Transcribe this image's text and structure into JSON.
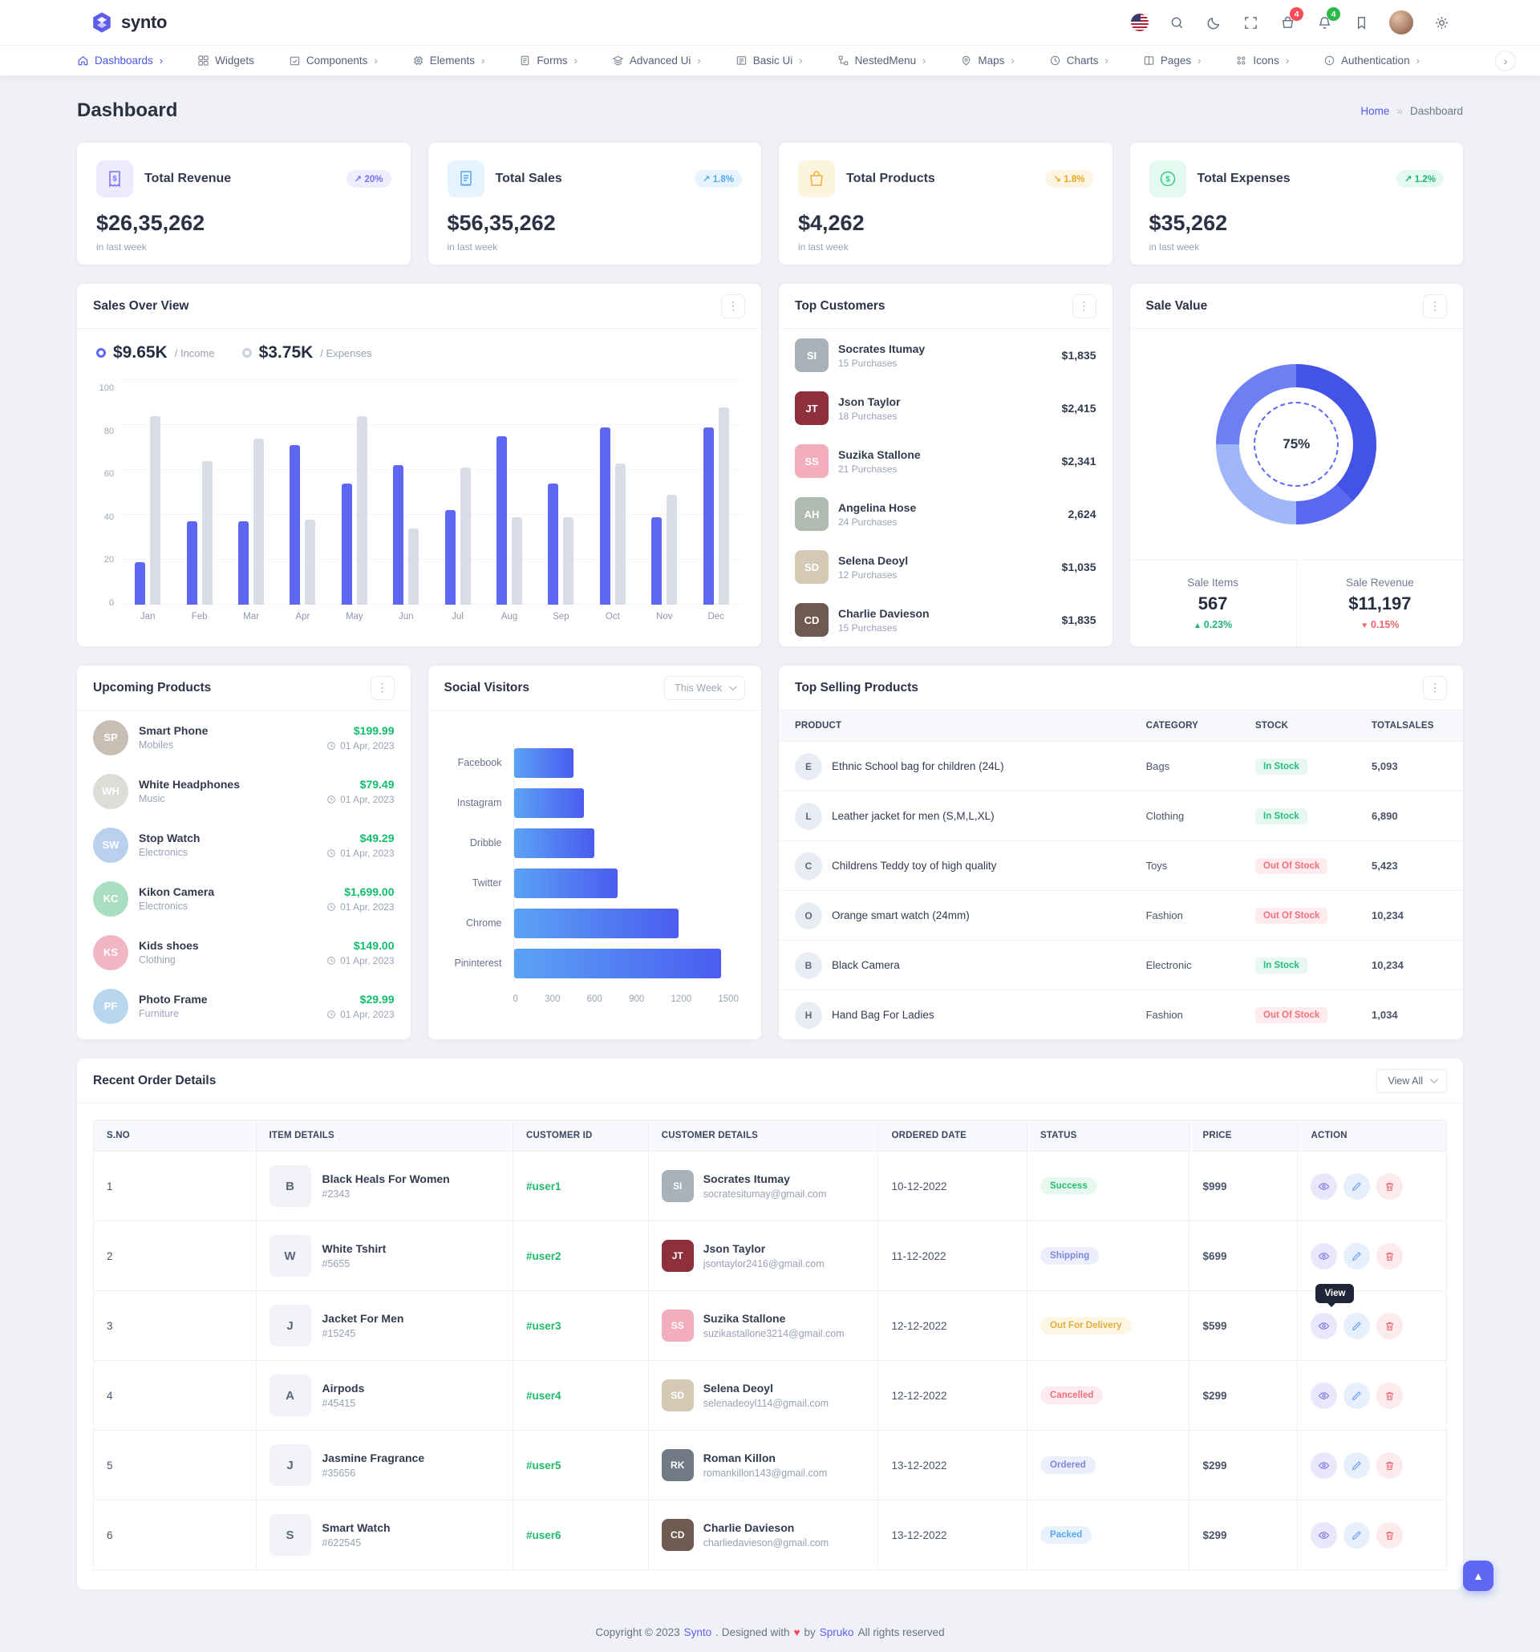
{
  "app": {
    "logo_text": "synto"
  },
  "header": {
    "cart_badge": "4",
    "bell_badge": "4"
  },
  "nav": {
    "items": [
      {
        "label": "Dashboards",
        "icon": "home",
        "chevron": "›",
        "active": true
      },
      {
        "label": "Widgets",
        "icon": "widgets"
      },
      {
        "label": "Components",
        "icon": "components",
        "chevron": "›"
      },
      {
        "label": "Elements",
        "icon": "elements",
        "chevron": "›"
      },
      {
        "label": "Forms",
        "icon": "forms",
        "chevron": "›"
      },
      {
        "label": "Advanced Ui",
        "icon": "advanced-ui",
        "chevron": "›"
      },
      {
        "label": "Basic Ui",
        "icon": "basic-ui",
        "chevron": "›"
      },
      {
        "label": "NestedMenu",
        "icon": "nested-menu",
        "chevron": "›"
      },
      {
        "label": "Maps",
        "icon": "maps",
        "chevron": "›"
      },
      {
        "label": "Charts",
        "icon": "charts",
        "chevron": "›"
      },
      {
        "label": "Pages",
        "icon": "pages",
        "chevron": "›"
      },
      {
        "label": "Icons",
        "icon": "icons",
        "chevron": "›"
      },
      {
        "label": "Authentication",
        "icon": "authentication",
        "chevron": "›"
      }
    ]
  },
  "page": {
    "title": "Dashboard"
  },
  "breadcrumb": {
    "home": "Home",
    "sep": "»",
    "current": "Dashboard"
  },
  "stats": [
    {
      "title": "Total Revenue",
      "value": "$26,35,262",
      "caption": "in last week",
      "delta": "20%",
      "trend": "up",
      "theme": "purple",
      "icon": "receipt"
    },
    {
      "title": "Total Sales",
      "value": "$56,35,262",
      "caption": "in last week",
      "delta": "1.8%",
      "trend": "up",
      "theme": "blue",
      "icon": "invoice"
    },
    {
      "title": "Total Products",
      "value": "$4,262",
      "caption": "in last week",
      "delta": "1.8%",
      "trend": "down",
      "theme": "orange",
      "icon": "bag"
    },
    {
      "title": "Total Expenses",
      "value": "$35,262",
      "caption": "in last week",
      "delta": "1.2%",
      "trend": "up",
      "theme": "green",
      "icon": "dollar"
    }
  ],
  "sales_overview": {
    "title": "Sales Over View",
    "legend": [
      {
        "value": "$9.65K",
        "label": "/ Income",
        "type": "income"
      },
      {
        "value": "$3.75K",
        "label": "/ Expenses",
        "type": "expense"
      }
    ]
  },
  "top_customers": {
    "title": "Top Customers",
    "items": [
      {
        "name": "Socrates Itumay",
        "purchases": "15 Purchases",
        "amount": "$1,835",
        "tint": "#a9b2ba"
      },
      {
        "name": "Json Taylor",
        "purchases": "18 Purchases",
        "amount": "$2,415",
        "tint": "#8e2f3c"
      },
      {
        "name": "Suzika Stallone",
        "purchases": "21 Purchases",
        "amount": "$2,341",
        "tint": "#f2aebc"
      },
      {
        "name": "Angelina Hose",
        "purchases": "24 Purchases",
        "amount": "2,624",
        "tint": "#b0bab0"
      },
      {
        "name": "Selena Deoyl",
        "purchases": "12 Purchases",
        "amount": "$1,035",
        "tint": "#d4c9b5"
      },
      {
        "name": "Charlie Davieson",
        "purchases": "15 Purchases",
        "amount": "$1,835",
        "tint": "#6e5a50"
      }
    ]
  },
  "sale_value": {
    "title": "Sale Value",
    "percent": "75%",
    "items": [
      {
        "label": "Sale Items",
        "value": "567",
        "delta": "0.23%",
        "dir": "up"
      },
      {
        "label": "Sale Revenue",
        "value": "$11,197",
        "delta": "0.15%",
        "dir": "down"
      }
    ]
  },
  "upcoming_products": {
    "title": "Upcoming Products",
    "items": [
      {
        "name": "Smart Phone",
        "category": "Mobiles",
        "price": "$199.99",
        "date": "01 Apr, 2023",
        "tint": "#c9beb4"
      },
      {
        "name": "White Headphones",
        "category": "Music",
        "price": "$79.49",
        "date": "01 Apr, 2023",
        "tint": "#dcdcd8"
      },
      {
        "name": "Stop Watch",
        "category": "Electronics",
        "price": "$49.29",
        "date": "01 Apr, 2023",
        "tint": "#b9d1ef"
      },
      {
        "name": "Kikon Camera",
        "category": "Electronics",
        "price": "$1,699.00",
        "date": "01 Apr, 2023",
        "tint": "#a9dfc0"
      },
      {
        "name": "Kids shoes",
        "category": "Clothing",
        "price": "$149.00",
        "date": "01 Apr, 2023",
        "tint": "#f0b6c6"
      },
      {
        "name": "Photo Frame",
        "category": "Furniture",
        "price": "$29.99",
        "date": "01 Apr, 2023",
        "tint": "#b8d7ef"
      }
    ]
  },
  "social_visitors": {
    "title": "Social Visitors",
    "range": "This Week"
  },
  "top_selling": {
    "title": "Top Selling Products",
    "columns": [
      "PRODUCT",
      "CATEGORY",
      "STOCK",
      "TOTALSALES"
    ],
    "rows": [
      {
        "product": "Ethnic School bag for children (24L)",
        "category": "Bags",
        "stock": "In Stock",
        "stock_type": "in",
        "total": "5,093"
      },
      {
        "product": "Leather jacket for men (S,M,L,XL)",
        "category": "Clothing",
        "stock": "In Stock",
        "stock_type": "in",
        "total": "6,890"
      },
      {
        "product": "Childrens Teddy toy of high quality",
        "category": "Toys",
        "stock": "Out Of Stock",
        "stock_type": "out",
        "total": "5,423"
      },
      {
        "product": "Orange smart watch (24mm)",
        "category": "Fashion",
        "stock": "Out Of Stock",
        "stock_type": "out",
        "total": "10,234"
      },
      {
        "product": "Black Camera",
        "category": "Electronic",
        "stock": "In Stock",
        "stock_type": "in",
        "total": "10,234"
      },
      {
        "product": "Hand Bag For Ladies",
        "category": "Fashion",
        "stock": "Out Of Stock",
        "stock_type": "out",
        "total": "1,034"
      }
    ]
  },
  "orders": {
    "title": "Recent Order Details",
    "view_all": "View All",
    "columns": [
      "S.NO",
      "ITEM DETAILS",
      "CUSTOMER ID",
      "CUSTOMER DETAILS",
      "ORDERED DATE",
      "STATUS",
      "PRICE",
      "ACTION"
    ],
    "rows": [
      {
        "sno": "1",
        "item": "Black Heals For Women",
        "item_id": "#2343",
        "customer_id": "#user1",
        "customer": "Socrates Itumay",
        "email": "socratesitumay@gmail.com",
        "tint": "#a9b2ba",
        "date": "10-12-2022",
        "status": "Success",
        "status_type": "success",
        "price": "$999"
      },
      {
        "sno": "2",
        "item": "White Tshirt",
        "item_id": "#5655",
        "customer_id": "#user2",
        "customer": "Json Taylor",
        "email": "jsontaylor2416@gmail.com",
        "tint": "#8e2f3c",
        "date": "11-12-2022",
        "status": "Shipping",
        "status_type": "shipping",
        "price": "$699"
      },
      {
        "sno": "3",
        "item": "Jacket For Men",
        "item_id": "#15245",
        "customer_id": "#user3",
        "customer": "Suzika Stallone",
        "email": "suzikastallone3214@gmail.com",
        "tint": "#f2aebc",
        "date": "12-12-2022",
        "status": "Out For Delivery",
        "status_type": "delivery",
        "price": "$599",
        "tooltip": "View"
      },
      {
        "sno": "4",
        "item": "Airpods",
        "item_id": "#45415",
        "customer_id": "#user4",
        "customer": "Selena Deoyl",
        "email": "selenadeoyl114@gmail.com",
        "tint": "#d4c9b5",
        "date": "12-12-2022",
        "status": "Cancelled",
        "status_type": "cancelled",
        "price": "$299"
      },
      {
        "sno": "5",
        "item": "Jasmine Fragrance",
        "item_id": "#35656",
        "customer_id": "#user5",
        "customer": "Roman Killon",
        "email": "romankillon143@gmail.com",
        "tint": "#707a84",
        "date": "13-12-2022",
        "status": "Ordered",
        "status_type": "ordered",
        "price": "$299"
      },
      {
        "sno": "6",
        "item": "Smart Watch",
        "item_id": "#622545",
        "customer_id": "#user6",
        "customer": "Charlie Davieson",
        "email": "charliedavieson@gmail.com",
        "tint": "#6e5a50",
        "date": "13-12-2022",
        "status": "Packed",
        "status_type": "packed",
        "price": "$299"
      }
    ]
  },
  "footer": {
    "p1": "Copyright © 2023",
    "link1": "Synto",
    "p2": ". Designed with",
    "heart": "♥",
    "p3": "by",
    "link2": "Spruko",
    "p4": "All rights reserved"
  },
  "chart_data": [
    {
      "id": "sales-over-view",
      "type": "bar",
      "title": "Sales Over View",
      "categories": [
        "Jan",
        "Feb",
        "Mar",
        "Apr",
        "May",
        "Jun",
        "Jul",
        "Aug",
        "Sep",
        "Oct",
        "Nov",
        "Dec"
      ],
      "series": [
        {
          "name": "Income",
          "values": [
            19,
            37,
            37,
            71,
            54,
            62,
            42,
            75,
            54,
            79,
            39,
            79
          ]
        },
        {
          "name": "Expenses",
          "values": [
            84,
            64,
            74,
            38,
            84,
            34,
            61,
            39,
            39,
            63,
            49,
            88
          ]
        }
      ],
      "ylim": [
        0,
        100
      ],
      "yticks": [
        0,
        20,
        40,
        60,
        80,
        100
      ],
      "grid": true,
      "legend_position": "top-left"
    },
    {
      "id": "social-visitors",
      "type": "bar",
      "orientation": "horizontal",
      "title": "Social Visitors",
      "categories": [
        "Facebook",
        "Instagram",
        "Dribble",
        "Twitter",
        "Chrome",
        "Pininterest"
      ],
      "values": [
        400,
        470,
        540,
        690,
        1100,
        1380
      ],
      "xlim": [
        0,
        1500
      ],
      "xticks": [
        0,
        300,
        600,
        900,
        1200,
        1500
      ]
    },
    {
      "id": "sale-value",
      "type": "pie",
      "title": "Sale Value",
      "value": 75,
      "label": "75%",
      "colors": {
        "main": "#4353e8",
        "rest": "#9fb6f9"
      }
    }
  ]
}
